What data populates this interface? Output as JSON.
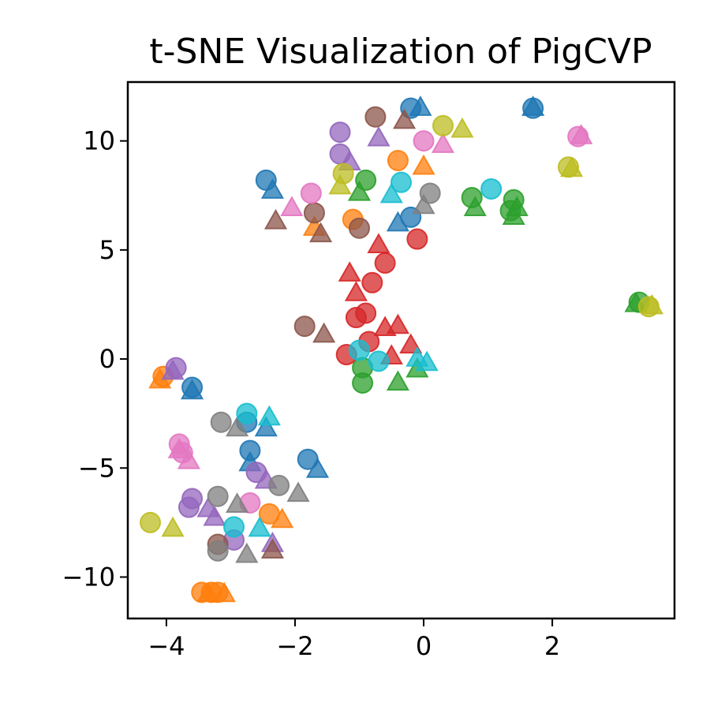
{
  "chart_data": {
    "type": "scatter",
    "title": "t-SNE Visualization of PigCVP",
    "xlabel": "",
    "ylabel": "",
    "xlim": [
      -4.6,
      3.9
    ],
    "ylim": [
      -11.9,
      12.7
    ],
    "xticks": [
      -4,
      -2,
      0,
      2
    ],
    "xtick_labels": [
      "−4",
      "−2",
      "0",
      "2"
    ],
    "yticks": [
      -10,
      -5,
      0,
      5,
      10
    ],
    "ytick_labels": [
      "−10",
      "−5",
      "0",
      "5",
      "10"
    ],
    "grid": false,
    "legend": "none",
    "marker_alpha": 0.75,
    "markers": {
      "circle": "o",
      "triangle": "^"
    },
    "colors": {
      "blue": "#1f77b4",
      "orange": "#ff7f0e",
      "green": "#2ca02c",
      "red": "#d62728",
      "purple": "#9467bd",
      "brown": "#8c564b",
      "pink": "#e377c2",
      "gray": "#7f7f7f",
      "olive": "#bcbd22",
      "cyan": "#17becf"
    },
    "points": [
      {
        "x": -0.2,
        "y": 11.5,
        "c": "blue",
        "m": "circle"
      },
      {
        "x": -0.05,
        "y": 11.5,
        "c": "blue",
        "m": "triangle"
      },
      {
        "x": 1.7,
        "y": 11.5,
        "c": "blue",
        "m": "circle"
      },
      {
        "x": 1.7,
        "y": 11.5,
        "c": "blue",
        "m": "triangle"
      },
      {
        "x": -2.45,
        "y": 8.2,
        "c": "blue",
        "m": "circle"
      },
      {
        "x": -2.35,
        "y": 7.7,
        "c": "blue",
        "m": "triangle"
      },
      {
        "x": -0.2,
        "y": 6.5,
        "c": "blue",
        "m": "circle"
      },
      {
        "x": -0.4,
        "y": 6.2,
        "c": "blue",
        "m": "triangle"
      },
      {
        "x": -3.6,
        "y": -1.3,
        "c": "blue",
        "m": "circle"
      },
      {
        "x": -3.6,
        "y": -1.5,
        "c": "blue",
        "m": "triangle"
      },
      {
        "x": -2.7,
        "y": -4.2,
        "c": "blue",
        "m": "circle"
      },
      {
        "x": -2.7,
        "y": -4.8,
        "c": "blue",
        "m": "triangle"
      },
      {
        "x": -1.8,
        "y": -4.6,
        "c": "blue",
        "m": "circle"
      },
      {
        "x": -1.65,
        "y": -5.1,
        "c": "blue",
        "m": "triangle"
      },
      {
        "x": -2.45,
        "y": -3.2,
        "c": "blue",
        "m": "triangle"
      },
      {
        "x": -2.75,
        "y": -2.9,
        "c": "blue",
        "m": "circle"
      },
      {
        "x": -0.4,
        "y": 9.1,
        "c": "orange",
        "m": "circle"
      },
      {
        "x": 0.0,
        "y": 8.8,
        "c": "orange",
        "m": "triangle"
      },
      {
        "x": -1.1,
        "y": 6.4,
        "c": "orange",
        "m": "circle"
      },
      {
        "x": -1.7,
        "y": 6.0,
        "c": "orange",
        "m": "triangle"
      },
      {
        "x": -4.05,
        "y": -0.8,
        "c": "orange",
        "m": "circle"
      },
      {
        "x": -4.1,
        "y": -1.0,
        "c": "orange",
        "m": "triangle"
      },
      {
        "x": -2.4,
        "y": -7.1,
        "c": "orange",
        "m": "circle"
      },
      {
        "x": -2.2,
        "y": -7.4,
        "c": "orange",
        "m": "triangle"
      },
      {
        "x": -3.45,
        "y": -10.7,
        "c": "orange",
        "m": "circle"
      },
      {
        "x": -3.35,
        "y": -10.8,
        "c": "orange",
        "m": "triangle"
      },
      {
        "x": -3.2,
        "y": -10.7,
        "c": "orange",
        "m": "circle"
      },
      {
        "x": -3.1,
        "y": -10.8,
        "c": "orange",
        "m": "triangle"
      },
      {
        "x": -3.3,
        "y": -10.7,
        "c": "orange",
        "m": "circle"
      },
      {
        "x": -0.9,
        "y": 8.2,
        "c": "green",
        "m": "circle"
      },
      {
        "x": -1.0,
        "y": 7.6,
        "c": "green",
        "m": "triangle"
      },
      {
        "x": 0.75,
        "y": 7.4,
        "c": "green",
        "m": "circle"
      },
      {
        "x": 0.8,
        "y": 6.9,
        "c": "green",
        "m": "triangle"
      },
      {
        "x": 1.4,
        "y": 7.3,
        "c": "green",
        "m": "circle"
      },
      {
        "x": 1.35,
        "y": 6.8,
        "c": "green",
        "m": "circle"
      },
      {
        "x": 1.4,
        "y": 6.5,
        "c": "green",
        "m": "triangle"
      },
      {
        "x": 1.45,
        "y": 6.9,
        "c": "green",
        "m": "triangle"
      },
      {
        "x": 3.35,
        "y": 2.6,
        "c": "green",
        "m": "circle"
      },
      {
        "x": 3.3,
        "y": 2.5,
        "c": "green",
        "m": "triangle"
      },
      {
        "x": -0.95,
        "y": -0.4,
        "c": "green",
        "m": "circle"
      },
      {
        "x": -0.95,
        "y": -1.1,
        "c": "green",
        "m": "circle"
      },
      {
        "x": -0.4,
        "y": -1.1,
        "c": "green",
        "m": "triangle"
      },
      {
        "x": -0.1,
        "y": -0.5,
        "c": "green",
        "m": "triangle"
      },
      {
        "x": -0.6,
        "y": 4.4,
        "c": "red",
        "m": "circle"
      },
      {
        "x": -0.7,
        "y": 5.2,
        "c": "red",
        "m": "triangle"
      },
      {
        "x": -0.1,
        "y": 5.5,
        "c": "red",
        "m": "circle"
      },
      {
        "x": -0.8,
        "y": 3.5,
        "c": "red",
        "m": "circle"
      },
      {
        "x": -1.15,
        "y": 3.9,
        "c": "red",
        "m": "triangle"
      },
      {
        "x": -1.05,
        "y": 3.0,
        "c": "red",
        "m": "triangle"
      },
      {
        "x": -1.05,
        "y": 1.9,
        "c": "red",
        "m": "circle"
      },
      {
        "x": -0.9,
        "y": 2.1,
        "c": "red",
        "m": "circle"
      },
      {
        "x": -0.6,
        "y": 1.4,
        "c": "red",
        "m": "triangle"
      },
      {
        "x": -0.4,
        "y": 1.5,
        "c": "red",
        "m": "triangle"
      },
      {
        "x": -0.85,
        "y": 0.8,
        "c": "red",
        "m": "circle"
      },
      {
        "x": -1.2,
        "y": 0.2,
        "c": "red",
        "m": "circle"
      },
      {
        "x": -0.5,
        "y": 0.1,
        "c": "red",
        "m": "triangle"
      },
      {
        "x": -0.2,
        "y": 0.6,
        "c": "red",
        "m": "triangle"
      },
      {
        "x": -1.3,
        "y": 10.4,
        "c": "purple",
        "m": "circle"
      },
      {
        "x": -0.7,
        "y": 10.1,
        "c": "purple",
        "m": "triangle"
      },
      {
        "x": -1.3,
        "y": 9.4,
        "c": "purple",
        "m": "circle"
      },
      {
        "x": -1.15,
        "y": 9.0,
        "c": "purple",
        "m": "triangle"
      },
      {
        "x": -3.85,
        "y": -0.4,
        "c": "purple",
        "m": "circle"
      },
      {
        "x": -3.9,
        "y": -0.6,
        "c": "purple",
        "m": "triangle"
      },
      {
        "x": -2.6,
        "y": -5.2,
        "c": "purple",
        "m": "circle"
      },
      {
        "x": -2.45,
        "y": -5.6,
        "c": "purple",
        "m": "triangle"
      },
      {
        "x": -3.6,
        "y": -6.4,
        "c": "purple",
        "m": "circle"
      },
      {
        "x": -3.65,
        "y": -6.8,
        "c": "purple",
        "m": "circle"
      },
      {
        "x": -3.35,
        "y": -6.9,
        "c": "purple",
        "m": "triangle"
      },
      {
        "x": -3.25,
        "y": -7.3,
        "c": "purple",
        "m": "triangle"
      },
      {
        "x": -2.95,
        "y": -8.3,
        "c": "purple",
        "m": "circle"
      },
      {
        "x": -2.35,
        "y": -8.5,
        "c": "purple",
        "m": "triangle"
      },
      {
        "x": -0.75,
        "y": 11.1,
        "c": "brown",
        "m": "circle"
      },
      {
        "x": -0.3,
        "y": 10.9,
        "c": "brown",
        "m": "triangle"
      },
      {
        "x": -2.3,
        "y": 6.3,
        "c": "brown",
        "m": "triangle"
      },
      {
        "x": -1.7,
        "y": 6.7,
        "c": "brown",
        "m": "circle"
      },
      {
        "x": -1.6,
        "y": 5.7,
        "c": "brown",
        "m": "triangle"
      },
      {
        "x": -1.0,
        "y": 6.0,
        "c": "brown",
        "m": "circle"
      },
      {
        "x": -1.85,
        "y": 1.5,
        "c": "brown",
        "m": "circle"
      },
      {
        "x": -1.55,
        "y": 1.1,
        "c": "brown",
        "m": "triangle"
      },
      {
        "x": -3.2,
        "y": -8.5,
        "c": "brown",
        "m": "circle"
      },
      {
        "x": -2.35,
        "y": -8.8,
        "c": "brown",
        "m": "triangle"
      },
      {
        "x": 0.0,
        "y": 10.0,
        "c": "pink",
        "m": "circle"
      },
      {
        "x": 0.3,
        "y": 9.8,
        "c": "pink",
        "m": "triangle"
      },
      {
        "x": 2.4,
        "y": 10.2,
        "c": "pink",
        "m": "circle"
      },
      {
        "x": 2.45,
        "y": 10.2,
        "c": "pink",
        "m": "triangle"
      },
      {
        "x": -1.75,
        "y": 7.6,
        "c": "pink",
        "m": "circle"
      },
      {
        "x": -2.05,
        "y": 6.9,
        "c": "pink",
        "m": "triangle"
      },
      {
        "x": -3.8,
        "y": -3.9,
        "c": "pink",
        "m": "circle"
      },
      {
        "x": -3.75,
        "y": -4.3,
        "c": "pink",
        "m": "circle"
      },
      {
        "x": -3.8,
        "y": -4.2,
        "c": "pink",
        "m": "triangle"
      },
      {
        "x": -3.65,
        "y": -4.7,
        "c": "pink",
        "m": "triangle"
      },
      {
        "x": -2.7,
        "y": -6.6,
        "c": "pink",
        "m": "circle"
      },
      {
        "x": 0.1,
        "y": 7.6,
        "c": "gray",
        "m": "circle"
      },
      {
        "x": 0.0,
        "y": 7.0,
        "c": "gray",
        "m": "triangle"
      },
      {
        "x": -3.15,
        "y": -2.9,
        "c": "gray",
        "m": "circle"
      },
      {
        "x": -2.9,
        "y": -3.2,
        "c": "gray",
        "m": "triangle"
      },
      {
        "x": -2.25,
        "y": -5.8,
        "c": "gray",
        "m": "circle"
      },
      {
        "x": -1.95,
        "y": -6.2,
        "c": "gray",
        "m": "triangle"
      },
      {
        "x": -3.2,
        "y": -6.3,
        "c": "gray",
        "m": "circle"
      },
      {
        "x": -2.9,
        "y": -6.7,
        "c": "gray",
        "m": "triangle"
      },
      {
        "x": -3.2,
        "y": -8.8,
        "c": "gray",
        "m": "circle"
      },
      {
        "x": -2.75,
        "y": -9.0,
        "c": "gray",
        "m": "triangle"
      },
      {
        "x": 0.3,
        "y": 10.7,
        "c": "olive",
        "m": "circle"
      },
      {
        "x": 0.6,
        "y": 10.5,
        "c": "olive",
        "m": "triangle"
      },
      {
        "x": -1.25,
        "y": 8.5,
        "c": "olive",
        "m": "circle"
      },
      {
        "x": -1.3,
        "y": 7.9,
        "c": "olive",
        "m": "triangle"
      },
      {
        "x": 2.25,
        "y": 8.8,
        "c": "olive",
        "m": "circle"
      },
      {
        "x": 2.3,
        "y": 8.7,
        "c": "olive",
        "m": "triangle"
      },
      {
        "x": 3.5,
        "y": 2.4,
        "c": "olive",
        "m": "circle"
      },
      {
        "x": 3.55,
        "y": 2.4,
        "c": "olive",
        "m": "triangle"
      },
      {
        "x": -4.25,
        "y": -7.5,
        "c": "olive",
        "m": "circle"
      },
      {
        "x": -3.9,
        "y": -7.8,
        "c": "olive",
        "m": "triangle"
      },
      {
        "x": -0.35,
        "y": 8.1,
        "c": "cyan",
        "m": "circle"
      },
      {
        "x": -0.5,
        "y": 7.5,
        "c": "cyan",
        "m": "triangle"
      },
      {
        "x": 1.05,
        "y": 7.8,
        "c": "cyan",
        "m": "circle"
      },
      {
        "x": -1.0,
        "y": 0.4,
        "c": "cyan",
        "m": "circle"
      },
      {
        "x": -0.7,
        "y": -0.1,
        "c": "cyan",
        "m": "circle"
      },
      {
        "x": -0.1,
        "y": 0.0,
        "c": "cyan",
        "m": "triangle"
      },
      {
        "x": 0.05,
        "y": -0.2,
        "c": "cyan",
        "m": "triangle"
      },
      {
        "x": -2.75,
        "y": -2.5,
        "c": "cyan",
        "m": "circle"
      },
      {
        "x": -2.4,
        "y": -2.7,
        "c": "cyan",
        "m": "triangle"
      },
      {
        "x": -2.95,
        "y": -7.7,
        "c": "cyan",
        "m": "circle"
      },
      {
        "x": -2.55,
        "y": -7.8,
        "c": "cyan",
        "m": "triangle"
      }
    ]
  }
}
